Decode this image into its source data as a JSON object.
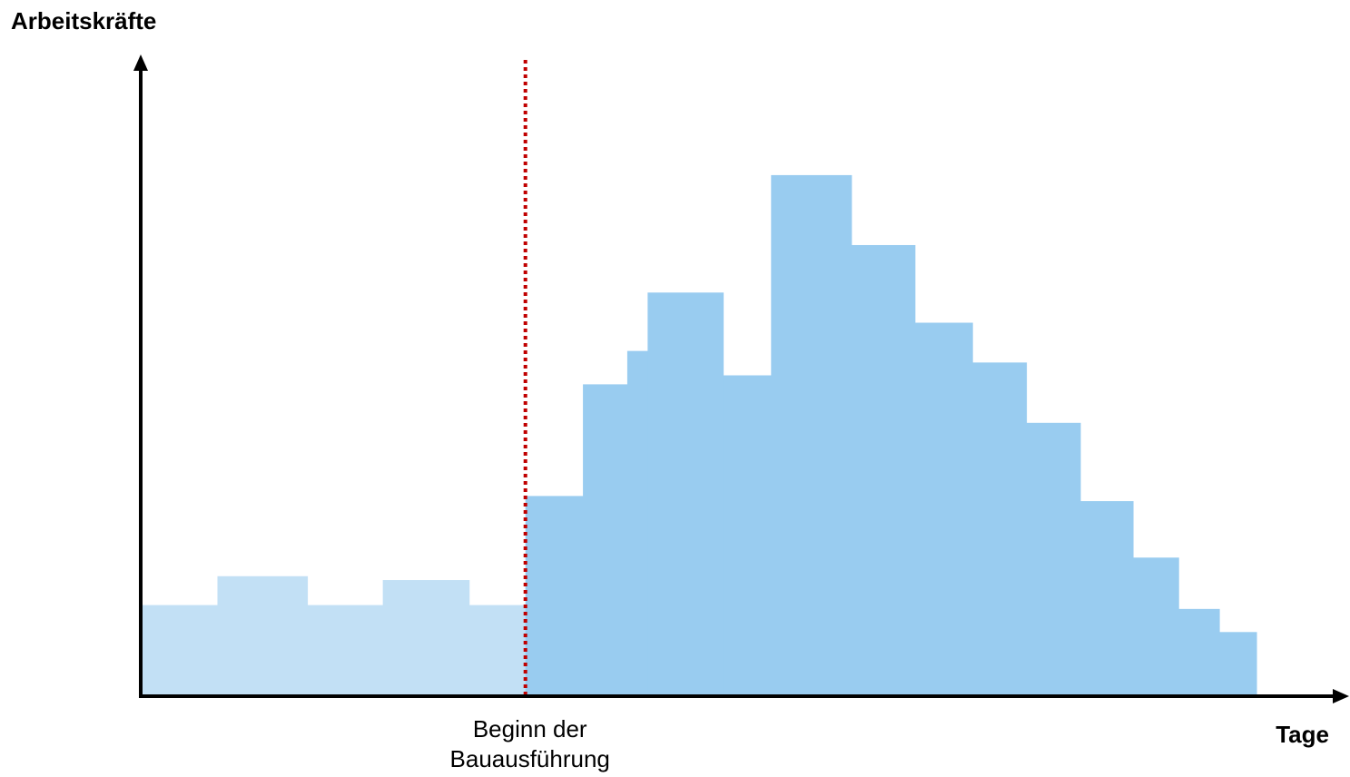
{
  "chart_data": {
    "type": "area",
    "title": "",
    "ylabel": "Arbeitskräfte",
    "xlabel": "Tage",
    "xlim": [
      0,
      100
    ],
    "ylim": [
      0,
      100
    ],
    "grid": false,
    "colors": {
      "pre_phase": "#c2e0f5",
      "main_phase": "#99ccf0",
      "axis": "#000000",
      "marker": "#c00000"
    },
    "marker": {
      "x": 32.1,
      "line1": "Beginn der",
      "line2": "Bauausführung"
    },
    "steps": [
      {
        "x0": 0.0,
        "x1": 6.4,
        "y": 14.2,
        "phase": "pre"
      },
      {
        "x0": 6.4,
        "x1": 13.9,
        "y": 18.7,
        "phase": "pre"
      },
      {
        "x0": 13.9,
        "x1": 20.2,
        "y": 14.2,
        "phase": "pre"
      },
      {
        "x0": 20.2,
        "x1": 27.4,
        "y": 18.1,
        "phase": "pre"
      },
      {
        "x0": 27.4,
        "x1": 32.1,
        "y": 14.2,
        "phase": "pre"
      },
      {
        "x0": 32.1,
        "x1": 36.9,
        "y": 31.2,
        "phase": "main"
      },
      {
        "x0": 36.9,
        "x1": 40.6,
        "y": 48.6,
        "phase": "main"
      },
      {
        "x0": 40.6,
        "x1": 42.3,
        "y": 53.8,
        "phase": "main"
      },
      {
        "x0": 42.3,
        "x1": 48.6,
        "y": 62.9,
        "phase": "main"
      },
      {
        "x0": 48.6,
        "x1": 52.6,
        "y": 50.0,
        "phase": "main"
      },
      {
        "x0": 52.6,
        "x1": 59.3,
        "y": 81.2,
        "phase": "main"
      },
      {
        "x0": 59.3,
        "x1": 64.6,
        "y": 70.3,
        "phase": "main"
      },
      {
        "x0": 64.6,
        "x1": 69.4,
        "y": 58.2,
        "phase": "main"
      },
      {
        "x0": 69.4,
        "x1": 73.9,
        "y": 52.0,
        "phase": "main"
      },
      {
        "x0": 73.9,
        "x1": 78.4,
        "y": 42.6,
        "phase": "main"
      },
      {
        "x0": 78.4,
        "x1": 82.8,
        "y": 30.4,
        "phase": "main"
      },
      {
        "x0": 82.8,
        "x1": 86.6,
        "y": 21.6,
        "phase": "main"
      },
      {
        "x0": 86.6,
        "x1": 90.0,
        "y": 13.6,
        "phase": "main"
      },
      {
        "x0": 90.0,
        "x1": 93.1,
        "y": 10.0,
        "phase": "main"
      }
    ]
  }
}
